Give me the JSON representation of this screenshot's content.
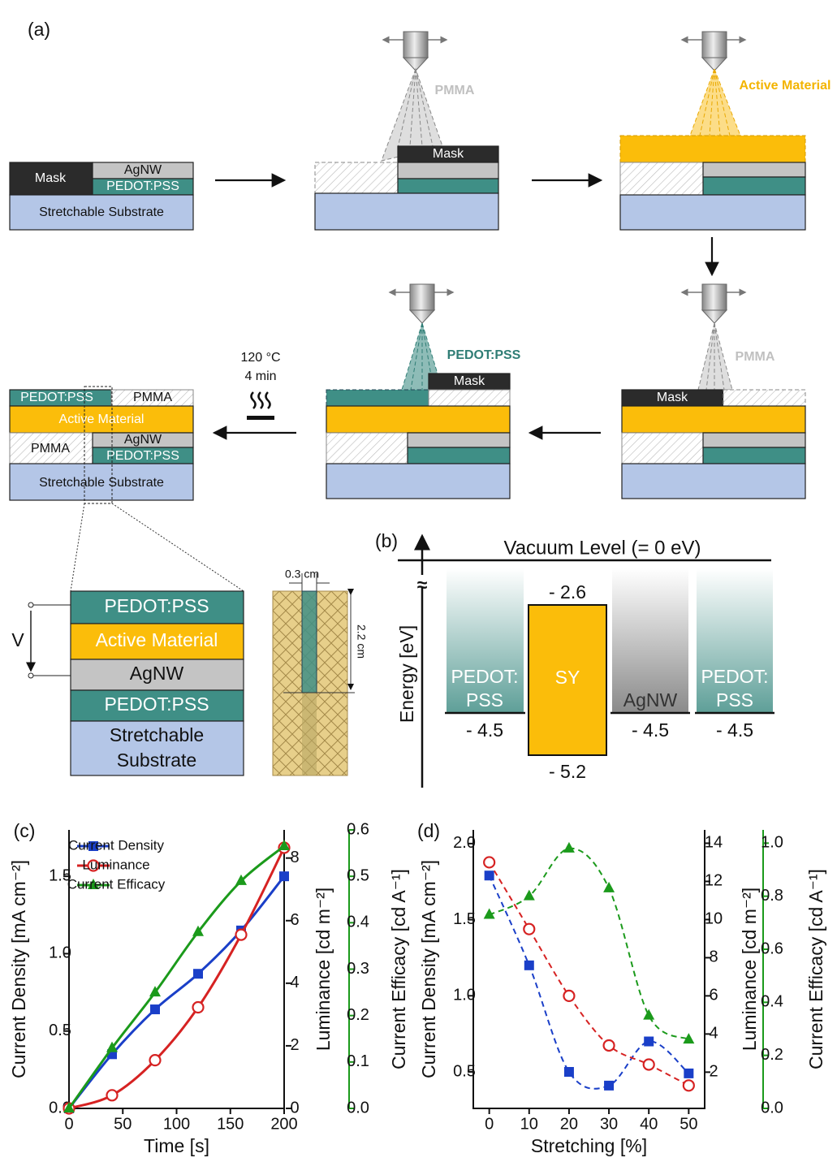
{
  "figure": {
    "panel_a": {
      "label": "(a)",
      "step1": {
        "mask": "Mask",
        "agnw": "AgNW",
        "pedot": "PEDOT:PSS",
        "substrate": "Stretchable Substrate"
      },
      "step2": {
        "spray": "PMMA",
        "mask": "Mask"
      },
      "step3": {
        "spray": "Active Material"
      },
      "step4": {
        "spray": "PMMA",
        "mask": "Mask"
      },
      "step5": {
        "spray": "PEDOT:PSS",
        "mask": "Mask"
      },
      "anneal": {
        "temperature": "120 °C",
        "time": "4 min"
      },
      "final": {
        "pedot_top": "PEDOT:PSS",
        "pmma_top": "PMMA",
        "active": "Active Material",
        "pmma": "PMMA",
        "agnw": "AgNW",
        "pedot": "PEDOT:PSS",
        "substrate": "Stretchable Substrate"
      },
      "stack": {
        "voltage": "V",
        "layers": [
          "PEDOT:PSS",
          "Active Material",
          "AgNW",
          "PEDOT:PSS",
          [
            "Stretchable",
            "Substrate"
          ]
        ]
      },
      "pattern": {
        "width": "0.3 cm",
        "length": "2.2 cm"
      }
    },
    "panel_b": {
      "label": "(b)",
      "vacuum": "Vacuum Level (= 0 eV)",
      "break": "≈",
      "axis": "Energy [eV]",
      "materials": [
        {
          "name": [
            "PEDOT:",
            "PSS"
          ],
          "level": "- 4.5"
        },
        {
          "name": [
            "SY"
          ],
          "top": "- 2.6",
          "bottom": "- 5.2"
        },
        {
          "name": [
            "AgNW"
          ],
          "level": "- 4.5"
        },
        {
          "name": [
            "PEDOT:",
            "PSS"
          ],
          "level": "- 4.5"
        }
      ]
    }
  },
  "chart_data": [
    {
      "type": "line",
      "label": "(c)",
      "x_label": "Time [s]",
      "y_label": "Current Density [mA cm⁻²]",
      "y2_label": "Luminance [cd m⁻²]",
      "y3_label": "Current Efficacy [cd A⁻¹]",
      "x": [
        0,
        40,
        80,
        120,
        160,
        200
      ],
      "xlim": [
        0,
        200
      ],
      "xticks": [
        0,
        50,
        100,
        150,
        200
      ],
      "ylim": [
        0,
        1.8
      ],
      "yticks": [
        {
          "value": 0,
          "label": "0.0"
        },
        0.5,
        {
          "value": 1,
          "label": "1.0"
        },
        1.5
      ],
      "y2lim": [
        0,
        8.9
      ],
      "y2ticks": [
        0,
        2,
        4,
        6,
        8
      ],
      "y3lim": [
        0,
        0.6
      ],
      "y3ticks": [
        {
          "value": 0,
          "label": "0.0"
        },
        0.1,
        0.2,
        0.3,
        0.4,
        0.5,
        0.6
      ],
      "legend": "upper left",
      "line_style": "solid",
      "series": [
        {
          "name": "Current Density",
          "color": "#1a3fc8",
          "marker": "square",
          "values": [
            0,
            0.35,
            0.64,
            0.87,
            1.15,
            1.5
          ]
        },
        {
          "name": "Luminance",
          "color": "#d62222",
          "marker": "circle",
          "axis": "y2",
          "values": [
            0,
            0.42,
            1.54,
            3.23,
            5.55,
            8.33
          ]
        },
        {
          "name": "Current Efficacy",
          "color": "#1b9a1b",
          "marker": "triangle",
          "axis": "y3",
          "values": [
            0,
            0.13,
            0.25,
            0.38,
            0.49,
            0.565
          ]
        }
      ]
    },
    {
      "type": "scatter",
      "label": "(d)",
      "x_label": "Stretching [%]",
      "y_label": "Current Density [mA cm⁻²]",
      "y2_label": "Luminance [cd m⁻²]",
      "y3_label": "Current Efficacy [cd A⁻¹]",
      "x": [
        0,
        10,
        20,
        30,
        40,
        50
      ],
      "xlim": [
        -4,
        54
      ],
      "xticks": [
        0,
        10,
        20,
        30,
        40,
        50
      ],
      "ylim": [
        0.26,
        2.09
      ],
      "yticks": [
        0.5,
        {
          "value": 1,
          "label": "1.0"
        },
        1.5,
        {
          "value": 2,
          "label": "2.0"
        }
      ],
      "y2lim": [
        0.1,
        14.7
      ],
      "y2ticks": [
        2,
        4,
        6,
        8,
        10,
        12,
        14
      ],
      "y3lim": [
        0,
        1.05
      ],
      "y3ticks": [
        {
          "value": 0,
          "label": "0.0"
        },
        0.2,
        0.4,
        0.6,
        0.8,
        {
          "value": 1,
          "label": "1.0"
        }
      ],
      "line_style": "dashed",
      "series": [
        {
          "name": "Current Density",
          "color": "#1a3fc8",
          "marker": "square",
          "values": [
            1.79,
            1.2,
            0.5,
            0.41,
            0.7,
            0.49
          ]
        },
        {
          "name": "Luminance",
          "color": "#d62222",
          "marker": "circle",
          "axis": "y2",
          "values": [
            13.0,
            9.5,
            6.0,
            3.4,
            2.4,
            1.3
          ]
        },
        {
          "name": "Current Efficacy",
          "color": "#1b9a1b",
          "marker": "triangle",
          "axis": "y3",
          "values": [
            0.73,
            0.8,
            0.98,
            0.83,
            0.35,
            0.26
          ]
        }
      ]
    }
  ]
}
